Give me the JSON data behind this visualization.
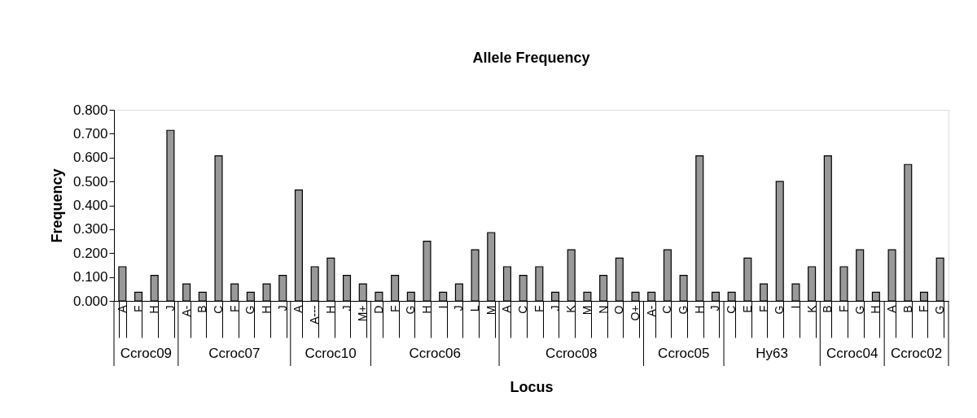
{
  "chart_data": {
    "type": "bar",
    "title": "Allele Frequency",
    "xlabel": "Locus",
    "ylabel": "Frequency",
    "categories": [
      "A",
      "F",
      "H",
      "J",
      "A-",
      "B",
      "C",
      "F",
      "G",
      "H",
      "J",
      "A",
      "A---",
      "H",
      "J",
      "M+",
      "D",
      "F",
      "G",
      "H",
      "I",
      "J",
      "L",
      "M",
      "A",
      "C",
      "F",
      "J",
      "K",
      "M",
      "N",
      "O",
      "O+",
      "A-",
      "C",
      "G",
      "H",
      "J",
      "C",
      "E",
      "F",
      "G",
      "I",
      "K",
      "B",
      "F",
      "G",
      "H",
      "A",
      "B",
      "F",
      "G"
    ],
    "values": [
      0.143,
      0.036,
      0.107,
      0.714,
      0.071,
      0.036,
      0.607,
      0.071,
      0.036,
      0.071,
      0.107,
      0.464,
      0.143,
      0.179,
      0.107,
      0.071,
      0.036,
      0.107,
      0.036,
      0.25,
      0.036,
      0.071,
      0.214,
      0.286,
      0.143,
      0.107,
      0.143,
      0.036,
      0.214,
      0.036,
      0.107,
      0.179,
      0.036,
      0.036,
      0.214,
      0.107,
      0.607,
      0.036,
      0.036,
      0.179,
      0.071,
      0.5,
      0.071,
      0.143,
      0.607,
      0.143,
      0.214,
      0.036,
      0.214,
      0.571,
      0.036,
      0.179
    ],
    "color": "#999999",
    "ylim": [
      0,
      0.8
    ],
    "yticks": [
      {
        "value": 0,
        "label": "0.000"
      },
      {
        "value": 0.1,
        "label": "0.100"
      },
      {
        "value": 0.2,
        "label": "0.200"
      },
      {
        "value": 0.3,
        "label": "0.300"
      },
      {
        "value": 0.4,
        "label": "0.400"
      },
      {
        "value": 0.5,
        "label": "0.500"
      },
      {
        "value": 0.6,
        "label": "0.600"
      },
      {
        "value": 0.7,
        "label": "0.700"
      },
      {
        "value": 0.8,
        "label": "0.800"
      }
    ],
    "annotations": [
      "Ccroc09",
      "Ccroc07",
      "Ccroc10",
      "Ccroc06",
      "Ccroc08",
      "Ccroc05",
      "Hy63",
      "Ccroc04",
      "Ccroc02"
    ],
    "grid": false
  }
}
